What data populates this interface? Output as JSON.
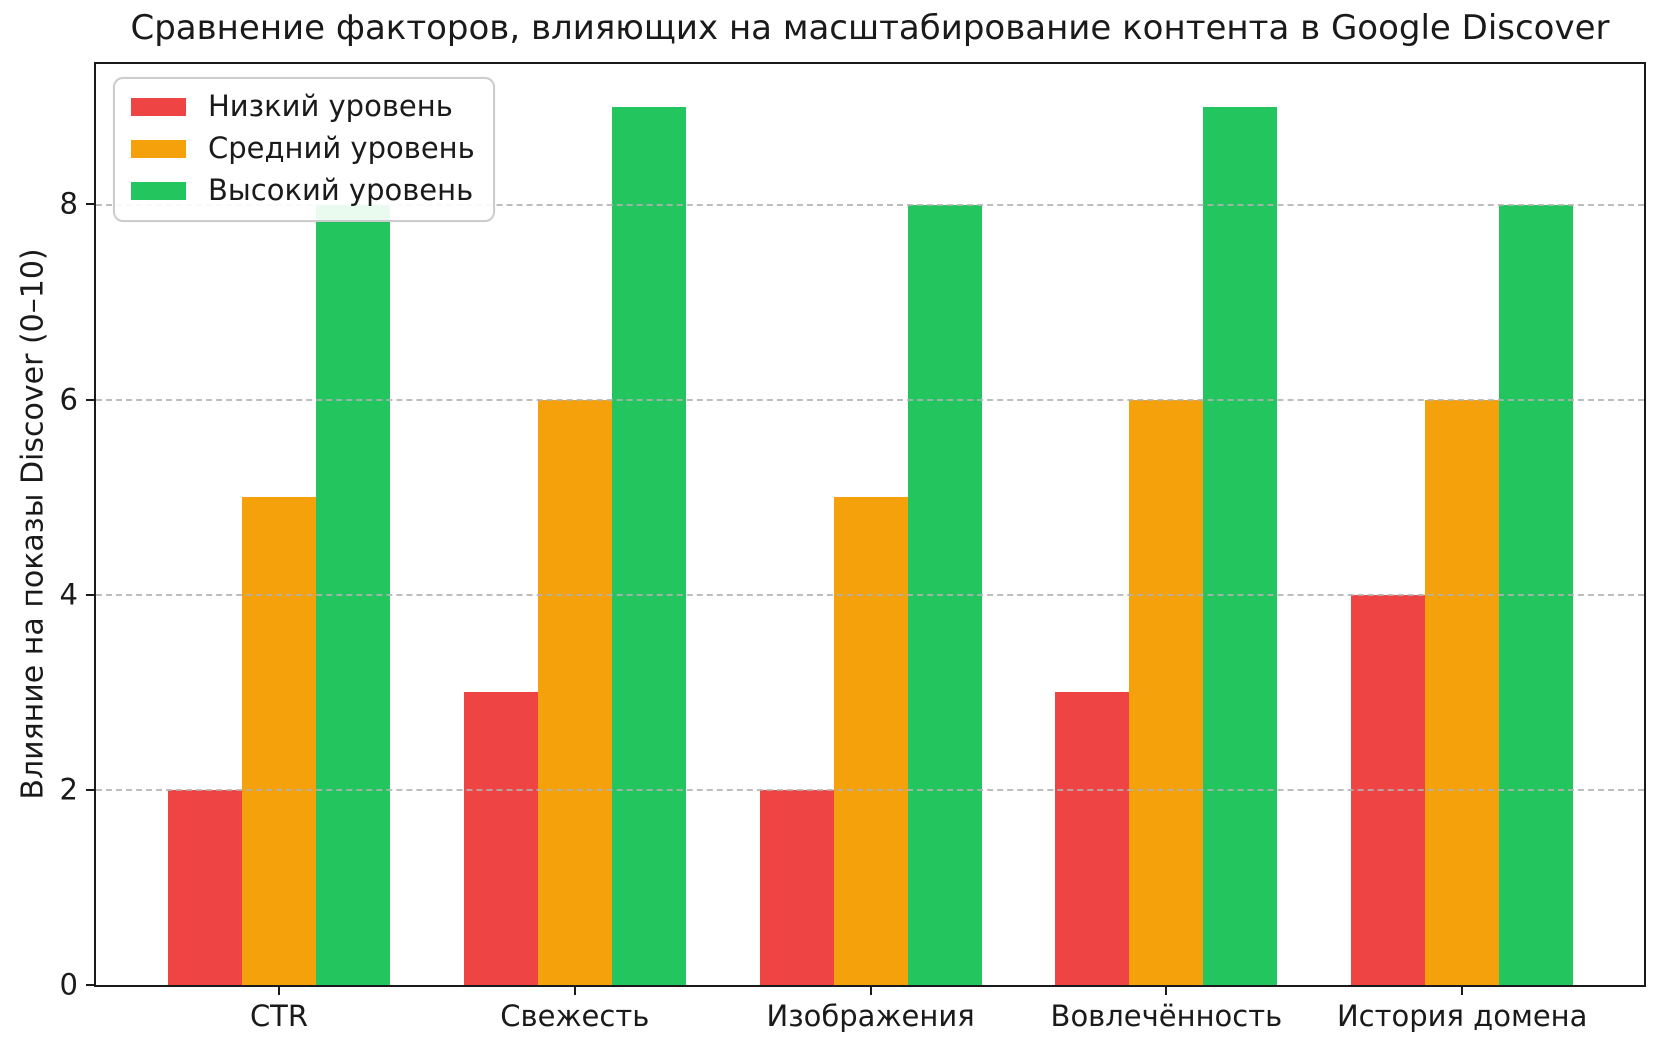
{
  "chart_data": {
    "type": "bar",
    "title": "Сравнение факторов, влияющих на масштабирование контента в Google Discover",
    "categories": [
      "CTR",
      "Свежесть",
      "Изображения",
      "Вовлечённость",
      "История домена"
    ],
    "series": [
      {
        "name": "Низкий уровень",
        "color": "#ef4444",
        "values": [
          2,
          3,
          2,
          3,
          4
        ]
      },
      {
        "name": "Средний уровень",
        "color": "#f4a10b",
        "values": [
          5,
          6,
          5,
          6,
          6
        ]
      },
      {
        "name": "Высокий уровень",
        "color": "#22c55e",
        "values": [
          8,
          9,
          8,
          9,
          8
        ]
      }
    ],
    "xlabel": "",
    "ylabel": "Влияние на показы Discover (0–10)",
    "ylim": [
      0,
      9.44
    ],
    "yticks": [
      0,
      2,
      4,
      6,
      8
    ],
    "grid": {
      "axis": "y",
      "style": "dashed",
      "color": "#b2b2b2",
      "on_top_of_bars": true
    },
    "legend_position": "upper left",
    "axis_color": "#1a1a1a",
    "background_color": "#ffffff"
  }
}
